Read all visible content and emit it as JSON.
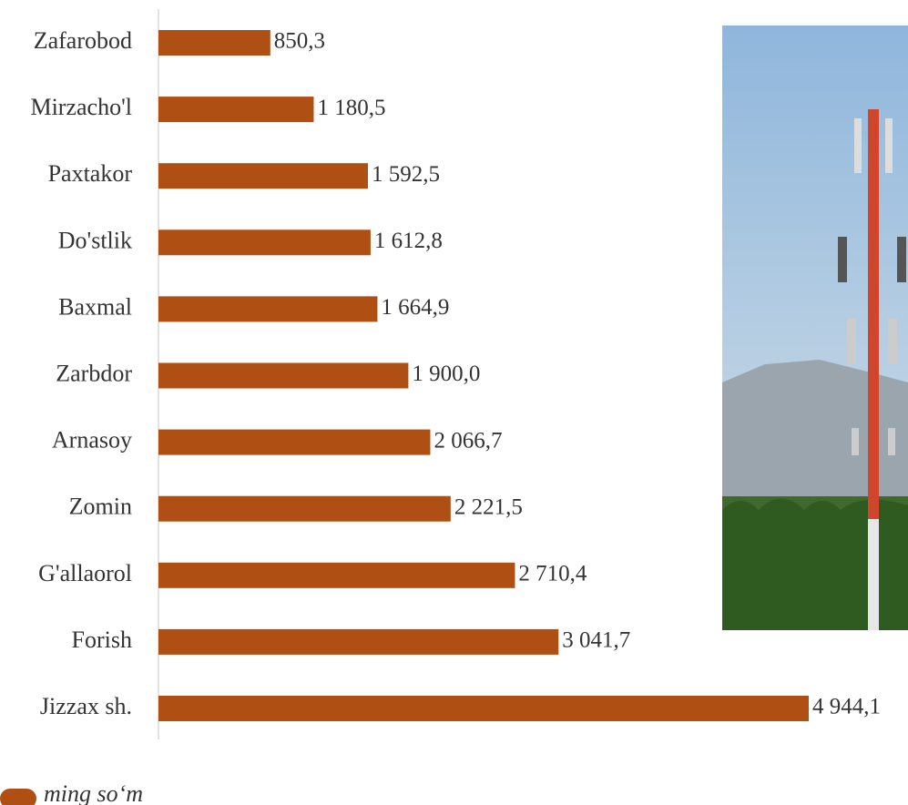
{
  "chart_data": {
    "type": "bar",
    "orientation": "horizontal",
    "categories": [
      "Zafarobod",
      "Mirzacho'l",
      "Paxtakor",
      "Do'stlik",
      "Baxmal",
      "Zarbdor",
      "Arnasoy",
      "Zomin",
      "G'allaorol",
      "Forish",
      "Jizzax sh."
    ],
    "series": [
      {
        "name": "ming so‘m",
        "color": "#b04f14",
        "values": [
          850.3,
          1180.5,
          1592.5,
          1612.8,
          1664.9,
          1900.0,
          2066.7,
          2221.5,
          2710.4,
          3041.7,
          4944.1
        ],
        "value_labels": [
          "850,3",
          "1 180,5",
          "1 592,5",
          "1 612,8",
          "1 664,9",
          "1 900,0",
          "2 066,7",
          "2 221,5",
          "2 710,4",
          "3 041,7",
          "4 944,1"
        ]
      }
    ]
  }
}
